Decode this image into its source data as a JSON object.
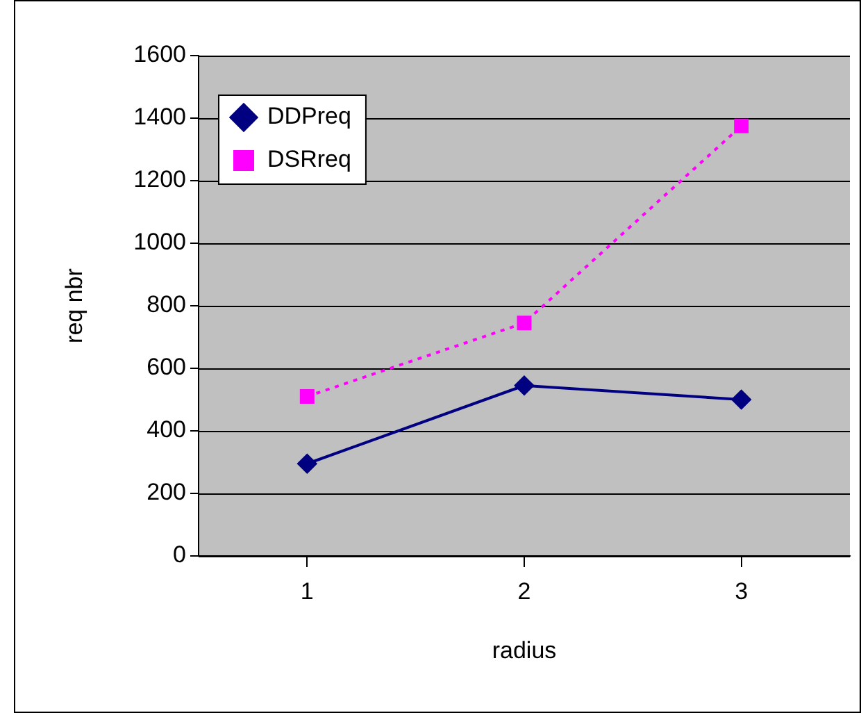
{
  "chart_data": {
    "type": "line",
    "xlabel": "radius",
    "ylabel": "req nbr",
    "categories": [
      "1",
      "2",
      "3"
    ],
    "series": [
      {
        "name": "DDPreq",
        "color": "#000080",
        "values": [
          295,
          545,
          500
        ],
        "marker": "diamond",
        "line_style": "solid"
      },
      {
        "name": "DSRreq",
        "color": "#ff00ff",
        "values": [
          510,
          745,
          1375
        ],
        "marker": "square",
        "line_style": "dotted"
      }
    ],
    "ylim": [
      0,
      1600
    ],
    "yticks": [
      0,
      200,
      400,
      600,
      800,
      1000,
      1200,
      1400,
      1600
    ],
    "grid": "y",
    "legend": "top left"
  }
}
